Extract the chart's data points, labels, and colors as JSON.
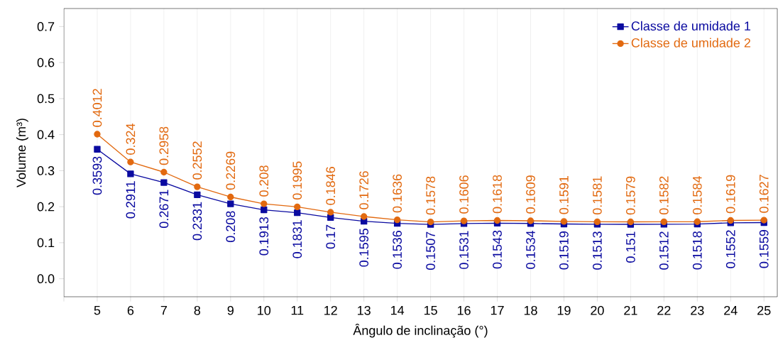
{
  "chart_data": {
    "type": "line",
    "xlabel": "Ângulo de inclinação (°)",
    "ylabel": "Volume (m³)",
    "x": [
      5,
      6,
      7,
      8,
      9,
      10,
      11,
      12,
      13,
      14,
      15,
      16,
      17,
      18,
      19,
      20,
      21,
      22,
      23,
      24,
      25
    ],
    "series": [
      {
        "name": "Classe de umidade 1",
        "color": "#0a0aa0",
        "marker": "square",
        "values": [
          0.3593,
          0.2911,
          0.2671,
          0.2331,
          0.208,
          0.1913,
          0.1831,
          0.17,
          0.1595,
          0.1536,
          0.1507,
          0.1531,
          0.1543,
          0.1534,
          0.1519,
          0.1513,
          0.151,
          0.1512,
          0.1518,
          0.1552,
          0.1559
        ],
        "value_labels": [
          "0.3593",
          "0.2911",
          "0.2671",
          "0.2331",
          "0.208",
          "0.1913",
          "0.1831",
          "0.17",
          "0.1595",
          "0.1536",
          "0.1507",
          "0.1531",
          "0.1543",
          "0.1534",
          "0.1519",
          "0.1513",
          "0.151",
          "0.1512",
          "0.1518",
          "0.1552",
          "0.1559"
        ]
      },
      {
        "name": "Classe de umidade 2",
        "color": "#e2690f",
        "marker": "circle",
        "values": [
          0.4012,
          0.324,
          0.2958,
          0.2552,
          0.2269,
          0.208,
          0.1995,
          0.1846,
          0.1726,
          0.1636,
          0.1578,
          0.1606,
          0.1618,
          0.1609,
          0.1591,
          0.1581,
          0.1579,
          0.1582,
          0.1584,
          0.1619,
          0.1627
        ],
        "value_labels": [
          "0.4012",
          "0.324",
          "0.2958",
          "0.2552",
          "0.2269",
          "0.208",
          "0.1995",
          "0.1846",
          "0.1726",
          "0.1636",
          "0.1578",
          "0.1606",
          "0.1618",
          "0.1609",
          "0.1591",
          "0.1581",
          "0.1579",
          "0.1582",
          "0.1584",
          "0.1619",
          "0.1627"
        ]
      }
    ],
    "xlim": [
      4,
      25.4
    ],
    "ylim": [
      -0.05,
      0.75
    ],
    "xticks": [
      {
        "value": 4,
        "label": null
      },
      5,
      6,
      7,
      8,
      9,
      10,
      11,
      12,
      13,
      14,
      15,
      16,
      17,
      18,
      19,
      20,
      21,
      22,
      23,
      24,
      25
    ],
    "yticks": [
      {
        "value": 0,
        "label": "0.0"
      },
      0.1,
      0.2,
      0.3,
      0.4,
      0.5,
      0.6,
      0.7
    ],
    "grid": "x",
    "legend": "top right",
    "line_style": "solid"
  }
}
